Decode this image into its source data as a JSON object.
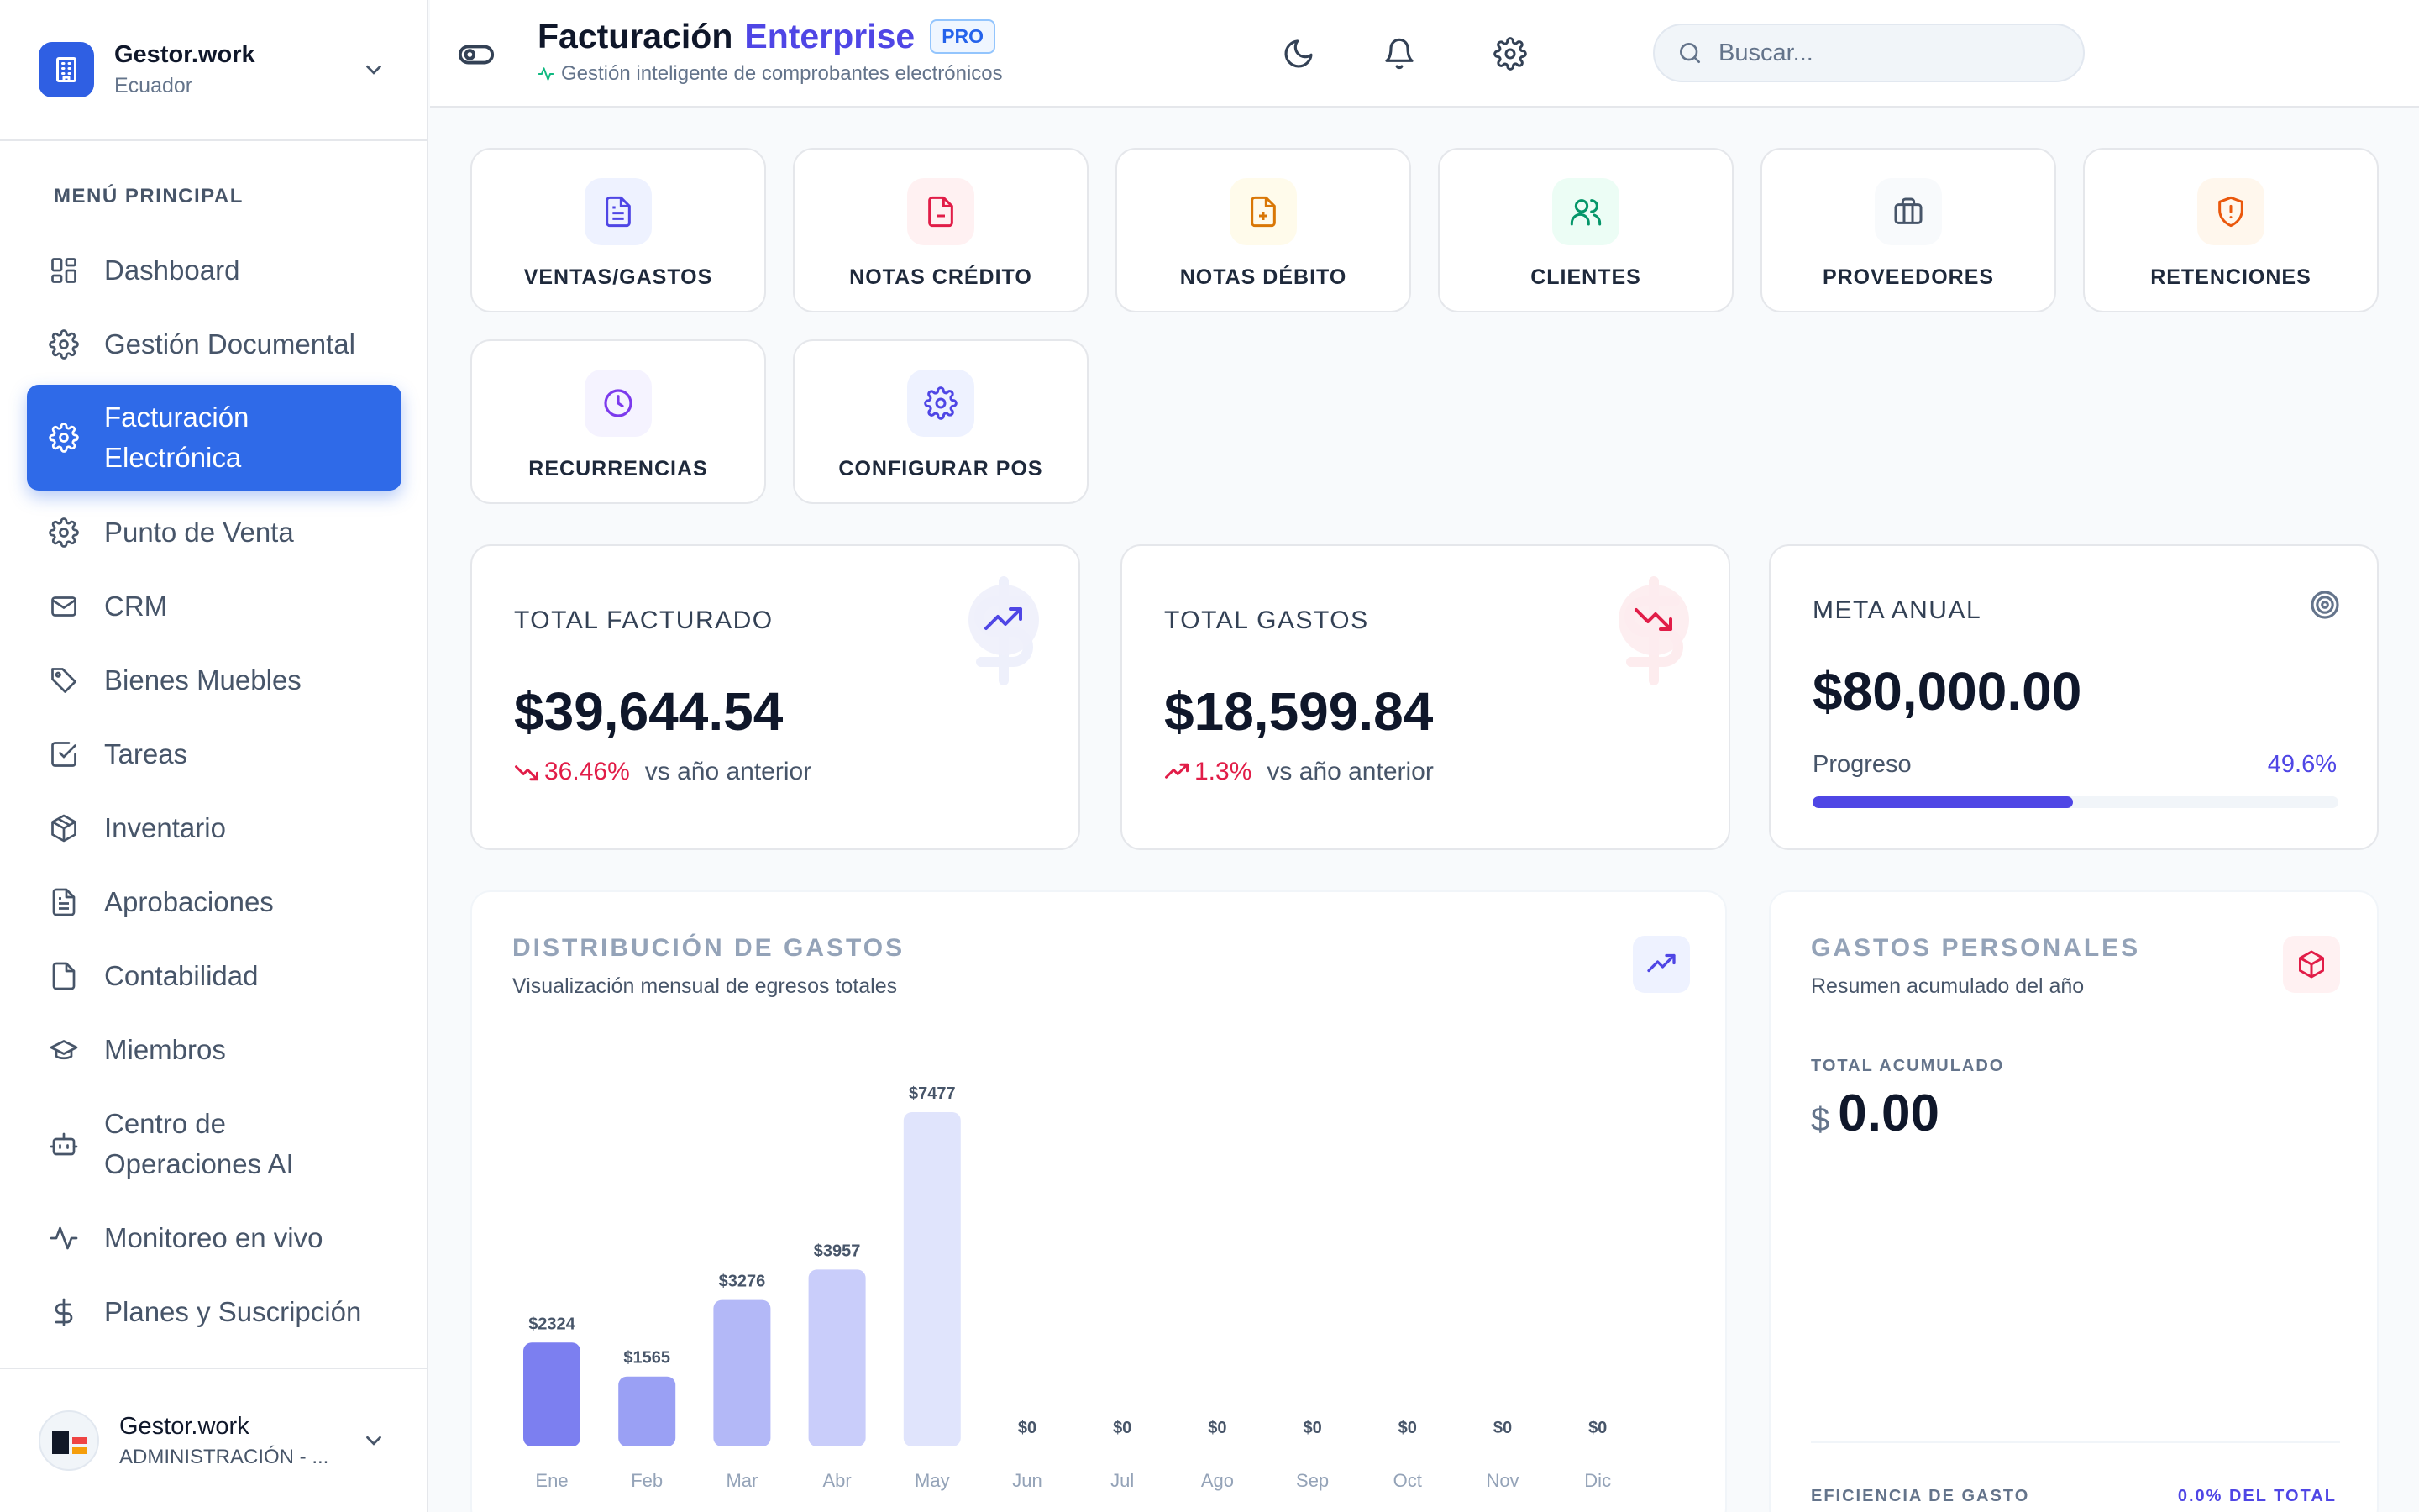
{
  "sidebar": {
    "brand_name": "Gestor.work",
    "brand_country": "Ecuador",
    "menu_title": "MENÚ PRINCIPAL",
    "items": [
      {
        "label": "Dashboard",
        "icon": "grid-icon"
      },
      {
        "label": "Gestión Documental",
        "icon": "gear-icon"
      },
      {
        "label": "Facturación Electrónica",
        "icon": "gear-icon",
        "active": true
      },
      {
        "label": "Punto de Venta",
        "icon": "gear-icon"
      },
      {
        "label": "CRM",
        "icon": "mail-icon"
      },
      {
        "label": "Bienes Muebles",
        "icon": "tag-icon"
      },
      {
        "label": "Tareas",
        "icon": "checkbox-icon"
      },
      {
        "label": "Inventario",
        "icon": "box-icon"
      },
      {
        "label": "Aprobaciones",
        "icon": "document-icon"
      },
      {
        "label": "Contabilidad",
        "icon": "file-icon"
      },
      {
        "label": "Miembros",
        "icon": "graduation-cap-icon"
      },
      {
        "label": "Centro de Operaciones AI",
        "icon": "bot-icon"
      },
      {
        "label": "Monitoreo en vivo",
        "icon": "activity-icon"
      },
      {
        "label": "Planes y Suscripción",
        "icon": "dollar-icon"
      }
    ],
    "user_name": "Gestor.work",
    "user_role": "ADMINISTRACIÓN - ..."
  },
  "header": {
    "title": "Facturación",
    "title_accent": "Enterprise",
    "badge": "PRO",
    "subtitle": "Gestión inteligente de comprobantes electrónicos",
    "search_placeholder": "Buscar..."
  },
  "tiles": [
    {
      "label": "VENTAS/GASTOS",
      "icon": "document-icon",
      "color": "#4f46e5",
      "bg": "#eef2ff"
    },
    {
      "label": "NOTAS CRÉDITO",
      "icon": "file-minus-icon",
      "color": "#e11d48",
      "bg": "#fff1f2"
    },
    {
      "label": "NOTAS DÉBITO",
      "icon": "file-plus-icon",
      "color": "#d97706",
      "bg": "#fffbeb"
    },
    {
      "label": "CLIENTES",
      "icon": "users-icon",
      "color": "#059669",
      "bg": "#ecfdf5"
    },
    {
      "label": "PROVEEDORES",
      "icon": "briefcase-icon",
      "color": "#475569",
      "bg": "#f8fafc"
    },
    {
      "label": "RETENCIONES",
      "icon": "shield-alert-icon",
      "color": "#ea580c",
      "bg": "#fff7ed"
    },
    {
      "label": "RECURRENCIAS",
      "icon": "clock-icon",
      "color": "#7c3aed",
      "bg": "#f5f3ff"
    },
    {
      "label": "CONFIGURAR POS",
      "icon": "gear-icon",
      "color": "#4f46e5",
      "bg": "#eef2ff"
    }
  ],
  "stats": {
    "billed": {
      "label": "TOTAL FACTURADO",
      "value": "$39,644.54",
      "change": "36.46%",
      "vs": "vs año anterior"
    },
    "expenses": {
      "label": "TOTAL GASTOS",
      "value": "$18,599.84",
      "change": "1.3%",
      "vs": "vs año anterior"
    },
    "goal": {
      "label": "META ANUAL",
      "value": "$80,000.00",
      "progress_label": "Progreso",
      "progress_text": "49.6%",
      "progress": 49.6
    }
  },
  "chart_data": {
    "type": "bar",
    "title": "DISTRIBUCIÓN DE GASTOS",
    "subtitle": "Visualización mensual de egresos totales",
    "categories": [
      "Ene",
      "Feb",
      "Mar",
      "Abr",
      "May",
      "Jun",
      "Jul",
      "Ago",
      "Sep",
      "Oct",
      "Nov",
      "Dic"
    ],
    "values": [
      2324,
      1565,
      3276,
      3957,
      7477,
      0,
      0,
      0,
      0,
      0,
      0,
      0
    ],
    "labels": [
      "$2324",
      "$1565",
      "$3276",
      "$3957",
      "$7477",
      "$0",
      "$0",
      "$0",
      "$0",
      "$0",
      "$0",
      "$0"
    ],
    "bar_colors": [
      "#7c7ff0",
      "#9aa0f4",
      "#b3b8f7",
      "#c9cdfa",
      "#e0e4fc",
      "#e0e4fc",
      "#e0e4fc",
      "#e0e4fc",
      "#e0e4fc",
      "#e0e4fc",
      "#e0e4fc",
      "#e0e4fc"
    ],
    "grid": false,
    "legend": "none"
  },
  "personal": {
    "title": "GASTOS PERSONALES",
    "subtitle": "Resumen acumulado del año",
    "accum_label": "TOTAL ACUMULADO",
    "currency": "$",
    "accum_value": "0.00",
    "efficiency_label": "EFICIENCIA DE GASTO",
    "efficiency_value": "0.0% DEL TOTAL"
  }
}
